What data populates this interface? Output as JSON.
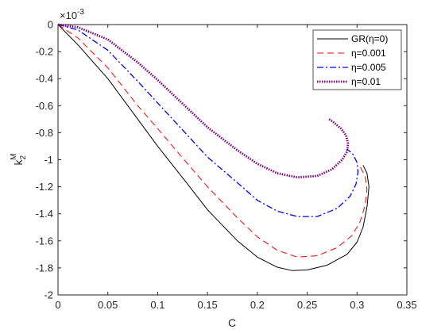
{
  "chart_data": {
    "type": "line",
    "title": "",
    "xlabel": "C",
    "ylabel": {
      "base": "k",
      "subscript": "2",
      "superscript": "M"
    },
    "y_multiplier": "×10",
    "y_multiplier_exponent": "-3",
    "xlim": [
      0,
      0.35
    ],
    "ylim": [
      -2,
      0
    ],
    "x_ticks": [
      0,
      0.05,
      0.1,
      0.15,
      0.2,
      0.25,
      0.3,
      0.35
    ],
    "x_tick_labels": [
      "0",
      "0.05",
      "0.1",
      "0.15",
      "0.2",
      "0.25",
      "0.3",
      "0.35"
    ],
    "y_ticks": [
      0,
      -0.2,
      -0.4,
      -0.6,
      -0.8,
      -1,
      -1.2,
      -1.4,
      -1.6,
      -1.8,
      -2
    ],
    "y_tick_labels": [
      "0",
      "-0.2",
      "-0.4",
      "-0.6",
      "-0.8",
      "-1",
      "-1.2",
      "-1.4",
      "-1.6",
      "-1.8",
      "-2"
    ],
    "grid": false,
    "legend_position": "top-right",
    "series": [
      {
        "name": "GR(η=0)",
        "color": "#000000",
        "style": "solid",
        "x": [
          0,
          0.02,
          0.05,
          0.08,
          0.1,
          0.13,
          0.15,
          0.18,
          0.2,
          0.22,
          0.235,
          0.25,
          0.27,
          0.29,
          0.3,
          0.306,
          0.31,
          0.312,
          0.31,
          0.306
        ],
        "y": [
          0,
          -0.15,
          -0.4,
          -0.7,
          -0.9,
          -1.18,
          -1.37,
          -1.6,
          -1.72,
          -1.795,
          -1.82,
          -1.815,
          -1.78,
          -1.7,
          -1.61,
          -1.5,
          -1.35,
          -1.2,
          -1.1,
          -1.04
        ]
      },
      {
        "name": "η=0.001",
        "color": "#ff0000",
        "style": "dashed",
        "x": [
          0,
          0.02,
          0.05,
          0.08,
          0.1,
          0.13,
          0.15,
          0.18,
          0.2,
          0.22,
          0.24,
          0.26,
          0.28,
          0.295,
          0.303,
          0.308,
          0.31,
          0.308,
          0.303
        ],
        "y": [
          0,
          -0.1,
          -0.32,
          -0.6,
          -0.77,
          -1.03,
          -1.2,
          -1.43,
          -1.57,
          -1.67,
          -1.72,
          -1.71,
          -1.65,
          -1.56,
          -1.46,
          -1.34,
          -1.22,
          -1.12,
          -1.05
        ]
      },
      {
        "name": "η=0.005",
        "color": "#0000ff",
        "style": "dashdot",
        "x": [
          0,
          0.02,
          0.05,
          0.08,
          0.1,
          0.13,
          0.15,
          0.18,
          0.2,
          0.22,
          0.24,
          0.26,
          0.28,
          0.293,
          0.299,
          0.301,
          0.3,
          0.296,
          0.29
        ],
        "y": [
          0,
          -0.04,
          -0.19,
          -0.42,
          -0.58,
          -0.82,
          -0.98,
          -1.17,
          -1.3,
          -1.38,
          -1.42,
          -1.42,
          -1.36,
          -1.27,
          -1.18,
          -1.09,
          -1.02,
          -0.96,
          -0.92
        ]
      },
      {
        "name": "η=0.01",
        "color": "#7f007f",
        "style": "dotted",
        "x": [
          0,
          0.02,
          0.05,
          0.08,
          0.1,
          0.13,
          0.15,
          0.18,
          0.2,
          0.22,
          0.24,
          0.26,
          0.275,
          0.285,
          0.29,
          0.291,
          0.289,
          0.284,
          0.276,
          0.272
        ],
        "y": [
          0,
          -0.02,
          -0.11,
          -0.28,
          -0.41,
          -0.62,
          -0.76,
          -0.93,
          -1.03,
          -1.1,
          -1.13,
          -1.12,
          -1.07,
          -1.0,
          -0.94,
          -0.88,
          -0.82,
          -0.77,
          -0.72,
          -0.7
        ]
      }
    ]
  }
}
